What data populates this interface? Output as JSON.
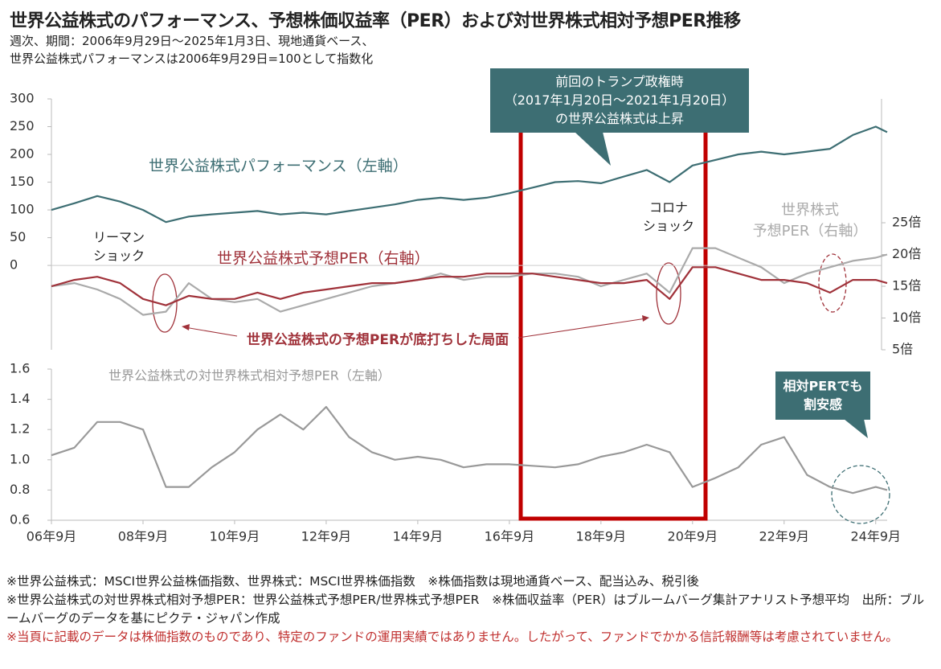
{
  "title": "世界公益株式のパフォーマンス、予想株価収益率（PER）および対世界株式相対予想PER推移",
  "subtitle": [
    "週次、期間：2006年9月29日～2025年1月3日、現地通貨ベース、",
    "世界公益株式パフォーマンスは2006年9月29日=100として指数化"
  ],
  "chart_data": [
    {
      "type": "line",
      "x": [
        2006.75,
        2007.25,
        2007.75,
        2008.25,
        2008.75,
        2009.25,
        2009.75,
        2010.25,
        2010.75,
        2011.25,
        2011.75,
        2012.25,
        2012.75,
        2013.25,
        2013.75,
        2014.25,
        2014.75,
        2015.25,
        2015.75,
        2016.25,
        2016.75,
        2017.25,
        2017.75,
        2018.25,
        2018.75,
        2019.25,
        2019.75,
        2020.25,
        2020.75,
        2021.25,
        2021.75,
        2022.25,
        2022.75,
        2023.25,
        2023.75,
        2024.25,
        2024.75,
        2025.0
      ],
      "xlim": [
        2006.75,
        2025.0
      ],
      "ylim": [
        -152,
        300
      ],
      "yticks": [
        0,
        50,
        100,
        150,
        200,
        250,
        300
      ],
      "y2lim": [
        5,
        44.5
      ],
      "y2ticks": [
        {
          "value": 5,
          "label": "5倍"
        },
        {
          "value": 10,
          "label": "10倍"
        },
        {
          "value": 15,
          "label": "15倍"
        },
        {
          "value": 20,
          "label": "20倍"
        },
        {
          "value": 25,
          "label": "25倍"
        }
      ],
      "series": [
        {
          "name": "世界公益株式パフォーマンス（左軸）",
          "color": "#3d6e73",
          "values": [
            100,
            112,
            125,
            115,
            100,
            78,
            88,
            92,
            95,
            98,
            92,
            95,
            92,
            98,
            104,
            110,
            118,
            122,
            118,
            122,
            130,
            140,
            150,
            152,
            148,
            160,
            172,
            150,
            180,
            190,
            200,
            205,
            200,
            205,
            210,
            235,
            250,
            240
          ]
        },
        {
          "name": "世界公益株式予想PER（右軸）",
          "color": "#a0323a",
          "axis": "y2",
          "values": [
            15,
            16,
            16.5,
            15.5,
            13,
            12,
            13.5,
            13,
            13,
            14,
            13,
            14,
            14.5,
            15,
            15.5,
            15.5,
            16,
            16.5,
            16.5,
            17,
            17,
            17,
            16.5,
            16,
            15.5,
            15.5,
            16,
            13,
            18,
            18,
            17,
            16,
            16,
            15.5,
            14,
            16,
            16,
            15.5
          ]
        },
        {
          "name": "世界株式\n予想PER（右軸）",
          "color": "#aaaaaa",
          "axis": "y2",
          "values": [
            15,
            15.5,
            14.5,
            13,
            10.5,
            11,
            15.5,
            13,
            12.5,
            13,
            11,
            12,
            13,
            14,
            15,
            15.5,
            16,
            17,
            16,
            16.5,
            16.5,
            17,
            17,
            16.5,
            15,
            16,
            17,
            14,
            21,
            21,
            19.5,
            18,
            15.5,
            17,
            18,
            19,
            19.5,
            20
          ]
        }
      ],
      "annotations": {
        "lehman": "リーマン\nショック",
        "corona": "コロナ\nショック",
        "bottom_out": "世界公益株式の予想PERが底打ちした局面",
        "trump": "前回のトランプ政権時\n（2017年1月20日～2021年1月20日）\nの世界公益株式は上昇"
      }
    },
    {
      "type": "line",
      "x": [
        2006.75,
        2007.25,
        2007.75,
        2008.25,
        2008.75,
        2009.25,
        2009.75,
        2010.25,
        2010.75,
        2011.25,
        2011.75,
        2012.25,
        2012.75,
        2013.25,
        2013.75,
        2014.25,
        2014.75,
        2015.25,
        2015.75,
        2016.25,
        2016.75,
        2017.25,
        2017.75,
        2018.25,
        2018.75,
        2019.25,
        2019.75,
        2020.25,
        2020.75,
        2021.25,
        2021.75,
        2022.25,
        2022.75,
        2023.25,
        2023.75,
        2024.25,
        2024.75,
        2025.0
      ],
      "xlim": [
        2006.75,
        2025.0
      ],
      "xticks": [
        {
          "value": 2006.75,
          "label": "06年9月"
        },
        {
          "value": 2008.75,
          "label": "08年9月"
        },
        {
          "value": 2010.75,
          "label": "10年9月"
        },
        {
          "value": 2012.75,
          "label": "12年9月"
        },
        {
          "value": 2014.75,
          "label": "14年9月"
        },
        {
          "value": 2016.75,
          "label": "16年9月"
        },
        {
          "value": 2018.75,
          "label": "18年9月"
        },
        {
          "value": 2020.75,
          "label": "20年9月"
        },
        {
          "value": 2022.75,
          "label": "22年9月"
        },
        {
          "value": 2024.75,
          "label": "24年9月"
        }
      ],
      "ylim": [
        0.6,
        1.6
      ],
      "yticks": [
        0.6,
        0.8,
        {
          "value": 1,
          "label": "1.0"
        },
        1.2,
        1.4,
        1.6
      ],
      "series": [
        {
          "name": "世界公益株式の対世界株式相対予想PER（左軸）",
          "color": "#999999",
          "values": [
            1.03,
            1.08,
            1.25,
            1.25,
            1.2,
            0.82,
            0.82,
            0.95,
            1.05,
            1.2,
            1.3,
            1.2,
            1.35,
            1.15,
            1.05,
            1.0,
            1.02,
            1.0,
            0.95,
            0.97,
            0.97,
            0.96,
            0.95,
            0.97,
            1.02,
            1.05,
            1.1,
            1.05,
            0.82,
            0.88,
            0.95,
            1.1,
            1.15,
            0.9,
            0.82,
            0.78,
            0.82,
            0.8
          ]
        }
      ],
      "annotations": {
        "cheap": "相対PERでも\n割安感"
      }
    }
  ],
  "notes": [
    "※世界公益株式：MSCI世界公益株価指数、世界株式：MSCI世界株価指数　※株価指数は現地通貨ベース、配当込み、税引後",
    "※世界公益株式の対世界株式相対予想PER：世界公益株式予想PER/世界株式予想PER　※株価収益率（PER）はブルームバーグ集計アナリスト予想平均　出所：ブルームバーグのデータを基にピクテ・ジャパン作成",
    "※当頁に記載のデータは株価指数のものであり、特定のファンドの運用実績ではありません。したがって、ファンドでかかる信託報酬等は考慮されていません。"
  ]
}
